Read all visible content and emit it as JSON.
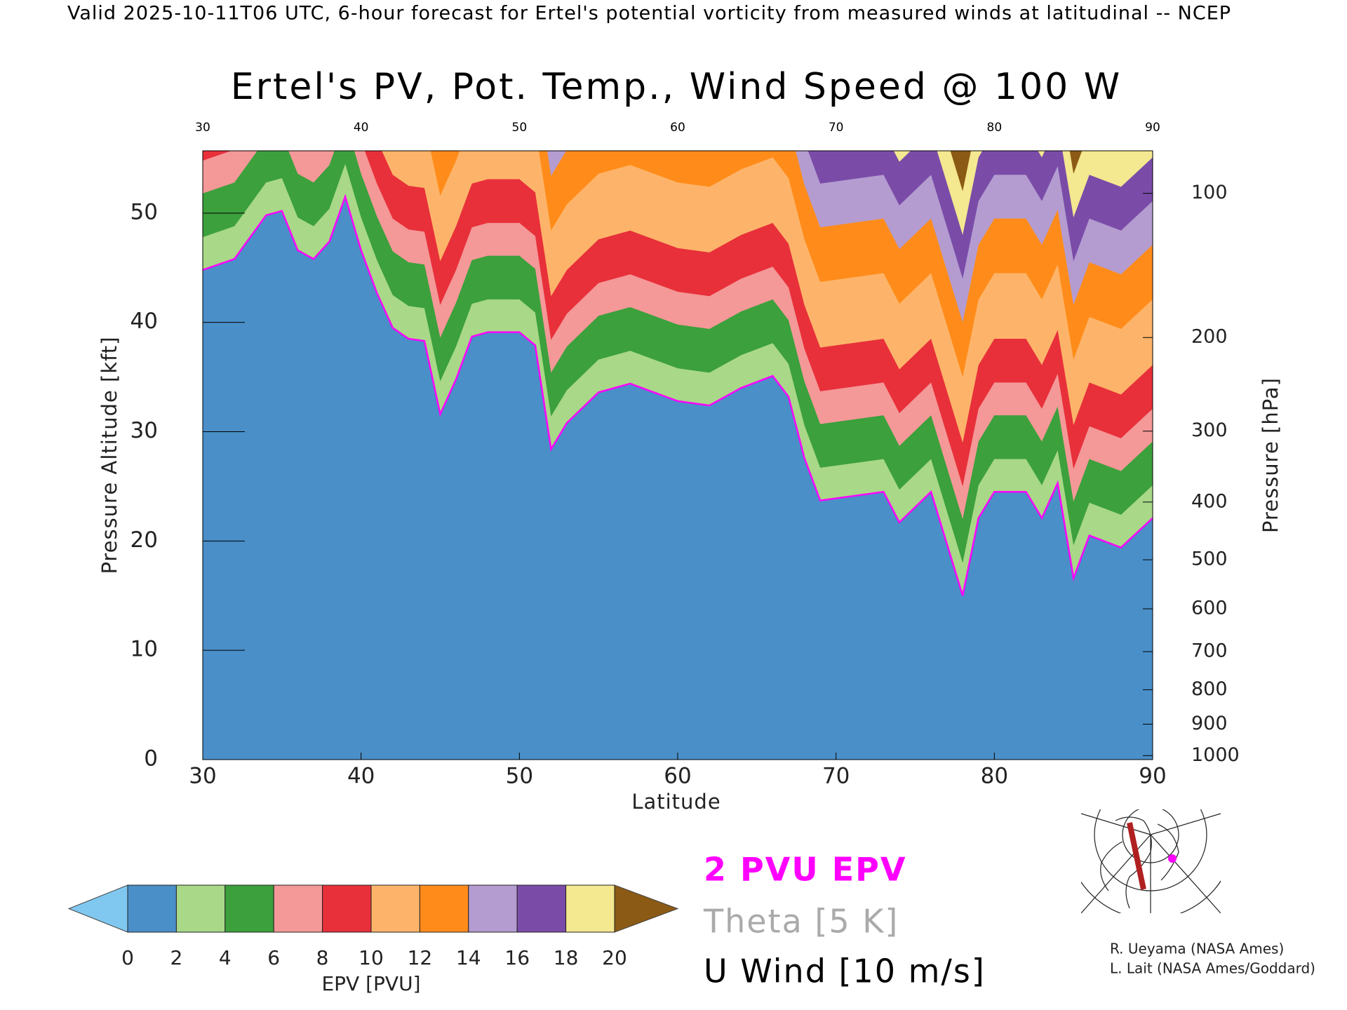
{
  "chart_data": {
    "type": "contour",
    "header": "Valid 2025-10-11T06 UTC, 6-hour forecast for Ertel's potential vorticity from measured winds at latitudinal -- NCEP",
    "title": "Ertel's PV, Pot. Temp., Wind Speed @ 100 W",
    "x_label": "Latitude",
    "y_label": "Pressure Altitude [kft]",
    "y2_label": "Pressure [hPa]",
    "xlim": [
      30,
      90
    ],
    "xticks": [
      30,
      40,
      50,
      60,
      70,
      80,
      90
    ],
    "ylim": [
      0,
      55.7
    ],
    "yticks": [
      0,
      10,
      20,
      30,
      40,
      50
    ],
    "y2lim": [
      1013.25,
      80
    ],
    "y2scale": "standard-atmosphere",
    "y2ticks": [
      100,
      200,
      300,
      400,
      500,
      600,
      700,
      800,
      900,
      1000
    ],
    "series": [
      {
        "name": "2 PVU EPV",
        "color": "#ff00ff",
        "x": [
          30,
          32,
          34,
          35,
          36,
          37,
          38,
          39,
          40,
          41,
          42,
          43,
          44,
          45,
          46,
          47,
          48,
          50,
          51,
          52,
          53,
          55,
          57,
          60,
          62,
          64,
          66,
          67,
          68,
          69,
          71,
          73,
          74,
          76,
          78,
          79,
          80,
          82,
          83,
          84,
          85,
          86,
          88,
          90
        ],
        "values": [
          44.8,
          45.8,
          49.8,
          50.2,
          46.6,
          45.8,
          47.4,
          51.5,
          46.6,
          42.7,
          39.5,
          38.5,
          38.3,
          31.6,
          34.8,
          38.7,
          39.1,
          39.1,
          37.9,
          28.4,
          30.8,
          33.6,
          34.4,
          32.8,
          32.4,
          34.0,
          35.1,
          33.2,
          27.6,
          23.7,
          24.1,
          24.5,
          21.7,
          24.5,
          15.0,
          22.1,
          24.5,
          24.5,
          22.1,
          25.3,
          16.6,
          20.5,
          19.4,
          22.1
        ]
      }
    ],
    "contour_legend": [
      {
        "label": "Theta [5 K]",
        "color": "#aaaaaa"
      },
      {
        "label": "U Wind [10 m/s]",
        "color": "#000000"
      }
    ],
    "colorbar": {
      "label": "EPV [PVU]",
      "ticks": [
        0,
        2,
        4,
        6,
        8,
        10,
        12,
        14,
        16,
        18,
        20
      ],
      "colors": [
        "#4a8fc8",
        "#a8d888",
        "#3ca03c",
        "#f49898",
        "#e8303a",
        "#fdb46a",
        "#ff8c1a",
        "#b49cd0",
        "#7a4ca8",
        "#f4e890"
      ],
      "under_color": "#80c8f0",
      "over_color": "#8b5a14"
    },
    "credits": [
      "R. Ueyama (NASA Ames)",
      "L. Lait (NASA Ames/Goddard)"
    ]
  }
}
